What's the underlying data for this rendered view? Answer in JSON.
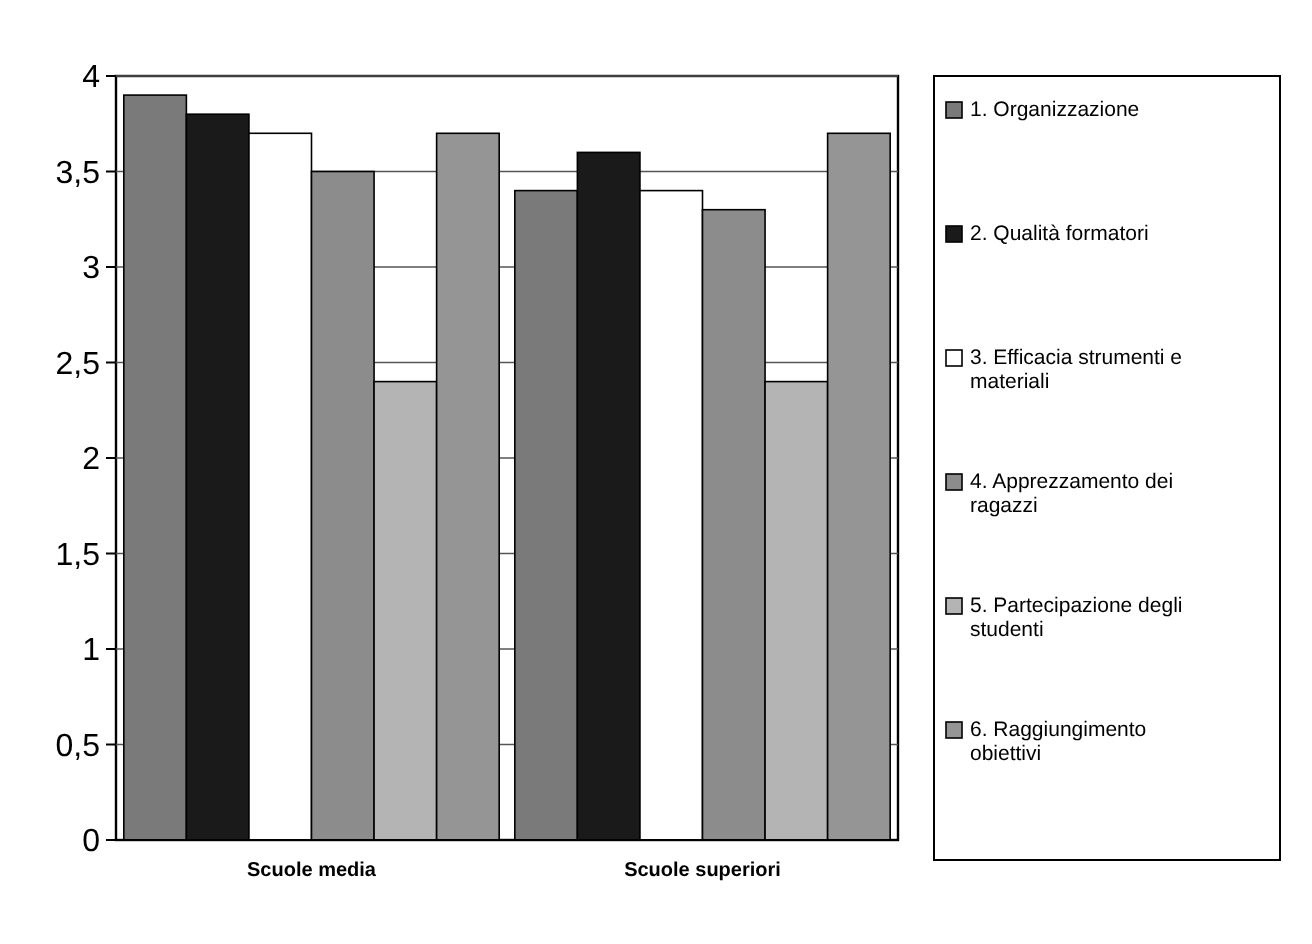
{
  "chart_data": {
    "type": "bar",
    "categories": [
      "Scuole media",
      "Scuole superiori"
    ],
    "series": [
      {
        "name": "1. Organizzazione",
        "color": "#7a7a7a",
        "values": [
          3.9,
          3.4
        ]
      },
      {
        "name": "2. Qualità formatori",
        "color": "#1a1a1a",
        "values": [
          3.8,
          3.6
        ]
      },
      {
        "name": "3. Efficacia strumenti e materiali",
        "color": "#ffffff",
        "values": [
          3.7,
          3.4
        ]
      },
      {
        "name": "4. Apprezzamento dei ragazzi",
        "color": "#8c8c8c",
        "values": [
          3.5,
          3.3
        ]
      },
      {
        "name": "5. Partecipazione degli studenti",
        "color": "#b4b4b4",
        "values": [
          2.4,
          2.4
        ]
      },
      {
        "name": "6. Raggiungimento obiettivi",
        "color": "#959595",
        "values": [
          3.7,
          3.7
        ]
      }
    ],
    "ylim": [
      0,
      4
    ],
    "yticks": [
      0,
      {
        "value": 0.5,
        "label": "0,5"
      },
      1,
      {
        "value": 1.5,
        "label": "1,5"
      },
      2,
      {
        "value": 2.5,
        "label": "2,5"
      },
      3,
      {
        "value": 3.5,
        "label": "3,5"
      },
      4
    ],
    "grid": "y",
    "legend": "right"
  }
}
